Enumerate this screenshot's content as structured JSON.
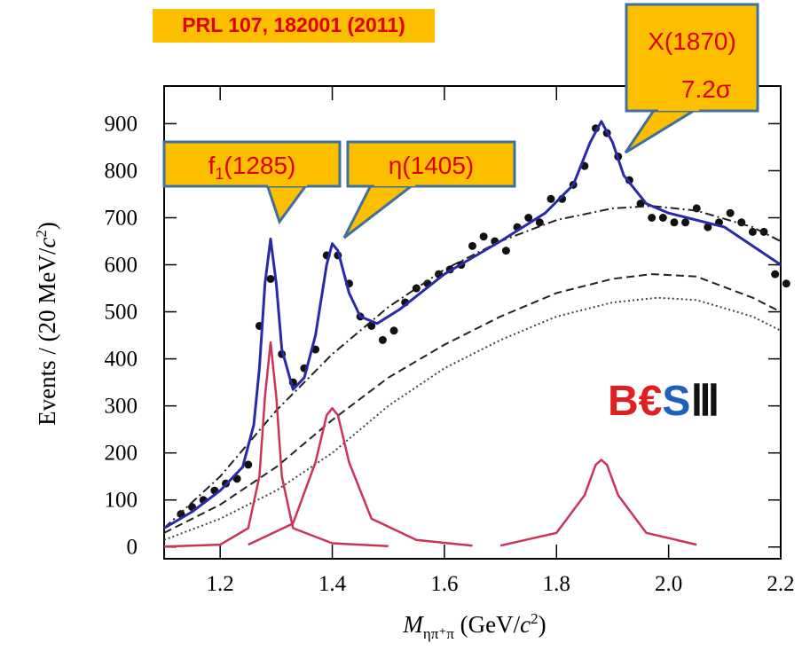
{
  "chart_data": {
    "type": "scatter",
    "title": "PRL 107, 182001 (2011)",
    "x_label": {
      "main": "M",
      "sub": "ηπ⁺π",
      "rest": " (GeV/",
      "italic": "c",
      "sup": "2",
      "end": ")"
    },
    "y_label": {
      "main": "Events / (20 MeV/",
      "italic": "c",
      "sup": "2",
      "end": ")"
    },
    "xlim": [
      1.1,
      2.2
    ],
    "ylim": [
      -25,
      980
    ],
    "xticks": [
      1.2,
      1.4,
      1.6,
      1.8,
      {
        "value": 2.0,
        "label": "2.0"
      },
      2.2
    ],
    "yticks": [
      0,
      100,
      200,
      300,
      400,
      500,
      600,
      700,
      800,
      900
    ],
    "annotations": [
      {
        "main": "f",
        "sub": "1",
        "rest": "(1285)"
      },
      {
        "main": "η(1405)"
      },
      {
        "main": "X(1870)",
        "line2": "7.2σ"
      }
    ],
    "logo": [
      "B",
      "€",
      "S",
      "Ⅲ"
    ],
    "series": [
      {
        "style": "points",
        "color": "#111111",
        "x": [
          1.13,
          1.15,
          1.17,
          1.19,
          1.21,
          1.23,
          1.25,
          1.27,
          1.29,
          1.31,
          1.33,
          1.35,
          1.37,
          1.39,
          1.41,
          1.43,
          1.45,
          1.47,
          1.49,
          1.51,
          1.53,
          1.55,
          1.57,
          1.59,
          1.61,
          1.63,
          1.65,
          1.67,
          1.69,
          1.71,
          1.73,
          1.75,
          1.77,
          1.79,
          1.81,
          1.83,
          1.85,
          1.87,
          1.89,
          1.91,
          1.93,
          1.95,
          1.97,
          1.99,
          2.01,
          2.03,
          2.05,
          2.07,
          2.09,
          2.11,
          2.13,
          2.15,
          2.17,
          2.19,
          2.21
        ],
        "values": [
          70,
          85,
          100,
          120,
          135,
          145,
          175,
          470,
          570,
          410,
          350,
          380,
          420,
          620,
          620,
          560,
          490,
          470,
          440,
          460,
          520,
          550,
          560,
          580,
          590,
          600,
          640,
          660,
          650,
          630,
          680,
          700,
          690,
          740,
          740,
          770,
          810,
          890,
          880,
          830,
          780,
          730,
          700,
          700,
          690,
          690,
          720,
          680,
          690,
          710,
          690,
          670,
          670,
          580,
          560
        ]
      },
      {
        "style": "dashdot",
        "color": "#222222",
        "x": [
          1.1,
          1.2,
          1.3,
          1.4,
          1.5,
          1.6,
          1.7,
          1.8,
          1.9,
          1.97,
          2.05,
          2.15,
          2.2
        ],
        "values": [
          40,
          150,
          290,
          410,
          510,
          590,
          650,
          695,
          720,
          725,
          715,
          680,
          650
        ]
      },
      {
        "style": "dashed",
        "color": "#222222",
        "x": [
          1.1,
          1.2,
          1.3,
          1.4,
          1.5,
          1.6,
          1.7,
          1.8,
          1.9,
          1.97,
          2.05,
          2.15,
          2.2
        ],
        "values": [
          30,
          90,
          170,
          270,
          360,
          430,
          490,
          540,
          570,
          580,
          575,
          530,
          500
        ]
      },
      {
        "style": "dotted",
        "color": "#444444",
        "x": [
          1.1,
          1.2,
          1.3,
          1.4,
          1.5,
          1.6,
          1.7,
          1.8,
          1.9,
          1.98,
          2.05,
          2.15,
          2.2
        ],
        "values": [
          15,
          60,
          120,
          200,
          300,
          380,
          440,
          490,
          520,
          530,
          525,
          490,
          460
        ]
      },
      {
        "style": "solid",
        "color": "#cc3355",
        "x": [
          1.1,
          1.2,
          1.25,
          1.27,
          1.28,
          1.29,
          1.3,
          1.31,
          1.33,
          1.4,
          1.5
        ],
        "values": [
          1,
          5,
          40,
          150,
          320,
          435,
          320,
          150,
          40,
          8,
          2
        ]
      },
      {
        "style": "solid",
        "color": "#cc3355",
        "x": [
          1.25,
          1.33,
          1.37,
          1.39,
          1.4,
          1.41,
          1.43,
          1.47,
          1.55,
          1.65
        ],
        "values": [
          5,
          50,
          180,
          280,
          295,
          280,
          180,
          60,
          15,
          3
        ]
      },
      {
        "style": "solid",
        "color": "#cc3355",
        "x": [
          1.7,
          1.8,
          1.85,
          1.87,
          1.88,
          1.89,
          1.91,
          1.96,
          2.05
        ],
        "values": [
          3,
          30,
          110,
          175,
          185,
          175,
          110,
          30,
          5
        ]
      },
      {
        "style": "fit",
        "color": "#2a2aa8",
        "x": [
          1.1,
          1.15,
          1.2,
          1.24,
          1.26,
          1.27,
          1.28,
          1.29,
          1.3,
          1.31,
          1.33,
          1.35,
          1.37,
          1.39,
          1.4,
          1.41,
          1.43,
          1.45,
          1.48,
          1.52,
          1.6,
          1.7,
          1.78,
          1.83,
          1.86,
          1.88,
          1.9,
          1.92,
          1.96,
          2.0,
          2.1,
          2.2
        ],
        "values": [
          40,
          75,
          120,
          170,
          260,
          380,
          560,
          655,
          560,
          420,
          335,
          360,
          450,
          600,
          645,
          630,
          540,
          490,
          475,
          505,
          580,
          650,
          710,
          770,
          860,
          905,
          860,
          790,
          730,
          710,
          680,
          600
        ]
      }
    ]
  }
}
